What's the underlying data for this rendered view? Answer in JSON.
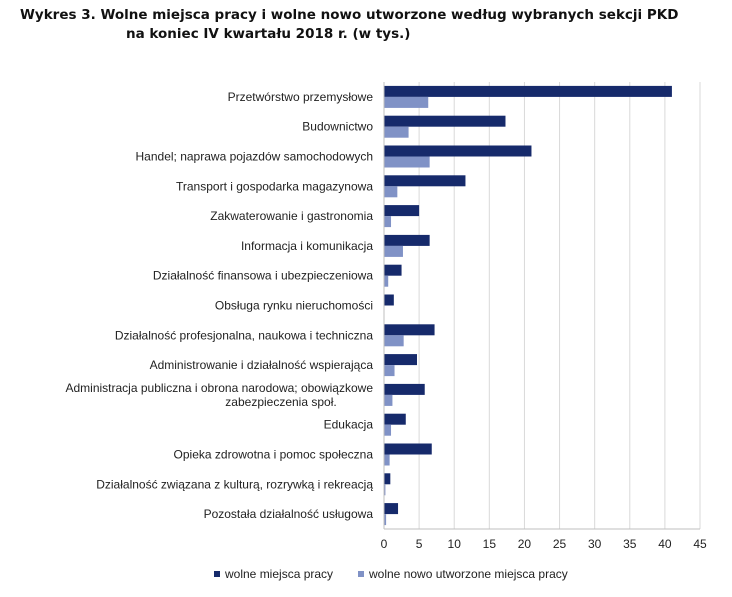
{
  "title": {
    "line1": "Wykres 3. Wolne miejsca pracy i wolne nowo utworzone według wybranych sekcji PKD",
    "line2": "na koniec IV kwartału 2018 r. (w tys.)"
  },
  "colors": {
    "series1": "#162a6b",
    "series2": "#8092c6",
    "grid": "#d9d9d9",
    "axis": "#bfbfbf",
    "text": "#222222"
  },
  "chart_data": {
    "type": "bar",
    "orientation": "horizontal",
    "title": "Wolne miejsca pracy i wolne nowo utworzone według wybranych sekcji PKD na koniec IV kwartału 2018 r. (w tys.)",
    "xlim": [
      0,
      45
    ],
    "xticks": [
      0,
      5,
      10,
      15,
      20,
      25,
      30,
      35,
      40,
      45
    ],
    "grid": "vertical",
    "legend": "bottom",
    "categories": [
      [
        "Przetwórstwo przemysłowe"
      ],
      [
        "Budownictwo"
      ],
      [
        "Handel; naprawa pojazdów samochodowych"
      ],
      [
        "Transport i gospodarka magazynowa"
      ],
      [
        "Zakwaterowanie i gastronomia"
      ],
      [
        "Informacja i komunikacja"
      ],
      [
        "Działalność finansowa i ubezpieczeniowa"
      ],
      [
        "Obsługa rynku nieruchomości"
      ],
      [
        "Działalność profesjonalna, naukowa i techniczna"
      ],
      [
        "Administrowanie i działalność wspierająca"
      ],
      [
        "Administracja publiczna i obrona narodowa; obowiązkowe",
        "zabezpieczenia społ."
      ],
      [
        "Edukacja"
      ],
      [
        "Opieka zdrowotna i pomoc społeczna"
      ],
      [
        "Działalność związana z kulturą, rozrywką i rekreacją"
      ],
      [
        "Pozostała działalność usługowa"
      ]
    ],
    "series": [
      {
        "name": "wolne miejsca pracy",
        "values": [
          41.0,
          17.3,
          21.0,
          11.6,
          5.0,
          6.5,
          2.5,
          1.4,
          7.2,
          4.7,
          5.8,
          3.1,
          6.8,
          0.9,
          2.0
        ]
      },
      {
        "name": "wolne nowo utworzone miejsca pracy",
        "values": [
          6.3,
          3.5,
          6.5,
          1.9,
          1.0,
          2.7,
          0.6,
          0.0,
          2.8,
          1.5,
          1.2,
          1.0,
          0.8,
          0.2,
          0.3
        ]
      }
    ]
  }
}
